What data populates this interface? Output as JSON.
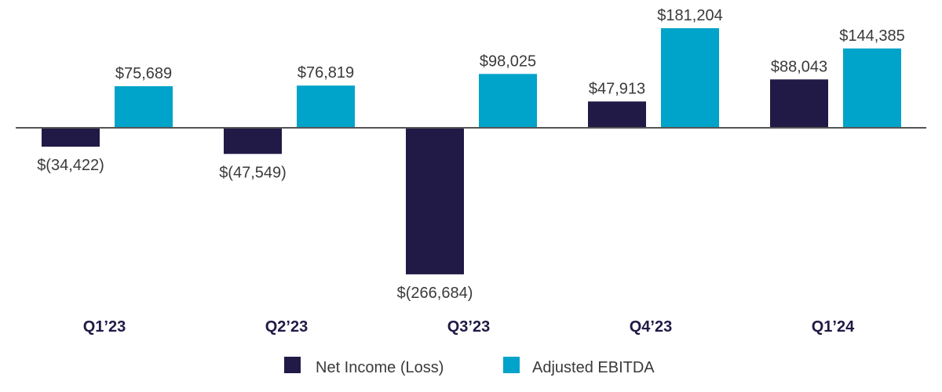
{
  "chart_data": {
    "type": "bar",
    "title": "",
    "xlabel": "",
    "ylabel": "",
    "categories": [
      "Q1’23",
      "Q2’23",
      "Q3’23",
      "Q4’23",
      "Q1’24"
    ],
    "series": [
      {
        "name": "Net Income (Loss)",
        "color": "#211a47",
        "values": [
          -34422,
          -47549,
          -266684,
          47913,
          88043
        ],
        "labels": [
          "$(34,422)",
          "$(47,549)",
          "$(266,684)",
          "$47,913",
          "$88,043"
        ]
      },
      {
        "name": "Adjusted EBITDA",
        "color": "#00a3c9",
        "values": [
          75689,
          76819,
          98025,
          181204,
          144385
        ],
        "labels": [
          "$75,689",
          "$76,819",
          "$98,025",
          "$181,204",
          "$144,385"
        ]
      }
    ],
    "ylim": [
      -266684,
      181204
    ],
    "grid": false,
    "legend": "bottom-center"
  },
  "colors": {
    "axis": "#555555",
    "label": "#3a3a3a",
    "category": "#1f1a45"
  }
}
